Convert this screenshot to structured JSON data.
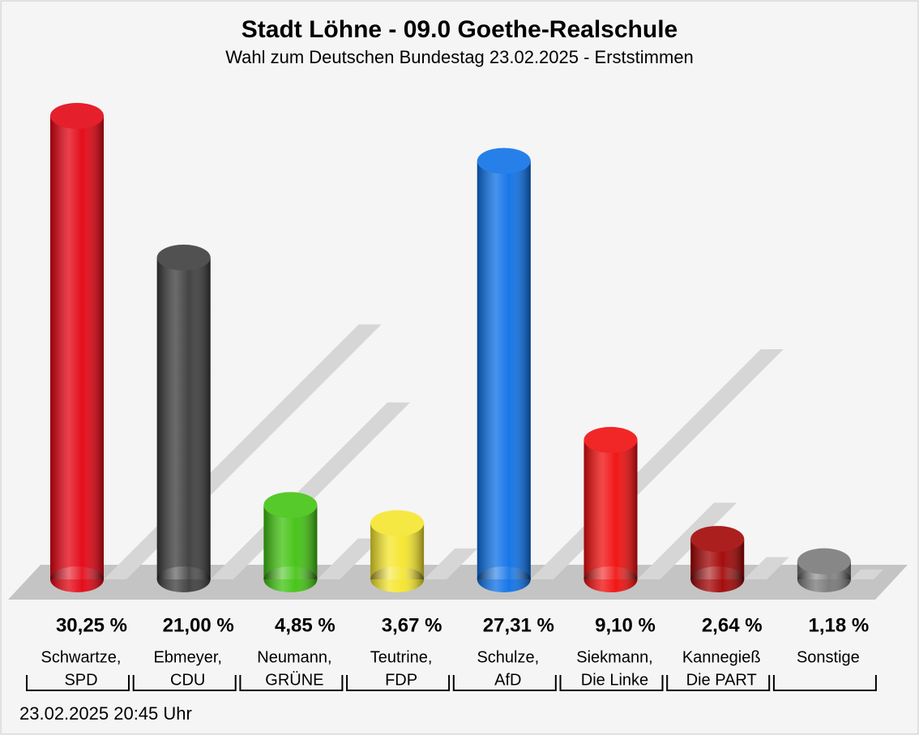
{
  "chart_data": {
    "type": "bar",
    "title": "Stadt Löhne - 09.0 Goethe-Realschule",
    "subtitle": "Wahl zum Deutschen Bundestag 23.02.2025  - Erststimmen",
    "categories": [
      [
        "Schwartze,",
        "SPD"
      ],
      [
        "Ebmeyer,",
        "CDU"
      ],
      [
        "Neumann,",
        "GRÜNE"
      ],
      [
        "Teutrine,",
        "FDP"
      ],
      [
        "Schulze,",
        "AfD"
      ],
      [
        "Siekmann,",
        "Die Linke"
      ],
      [
        "Kannegieß",
        "Die PART"
      ],
      [
        "Sonstige"
      ]
    ],
    "values": [
      30.25,
      21.0,
      4.85,
      3.67,
      27.31,
      9.1,
      2.64,
      1.18
    ],
    "value_labels": [
      "30,25 %",
      "21,00 %",
      "4,85 %",
      "3,67 %",
      "27,31 %",
      "9,10 %",
      "2,64 %",
      "1,18 %"
    ],
    "colors": [
      "#e3000f",
      "#3a3a3a",
      "#3fc20e",
      "#f5e52a",
      "#0a6fe6",
      "#f00a0a",
      "#a00000",
      "#777777"
    ],
    "footer": "23.02.2025 20:45 Uhr"
  }
}
